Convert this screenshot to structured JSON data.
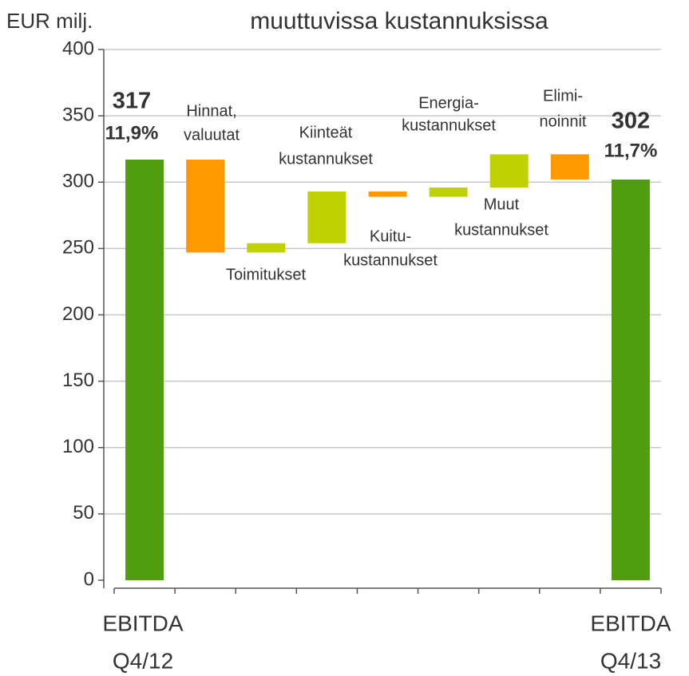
{
  "chart_data": {
    "type": "waterfall",
    "title": "muuttuvissa kustannuksissa",
    "y_label": "EUR milj.",
    "categories": [
      [
        "EBITDA",
        "Q4/12"
      ],
      [
        "Hinnat,",
        "valuutat"
      ],
      [
        "Toimitukset"
      ],
      [
        "Kiinteät",
        "kustannukset"
      ],
      [
        "Kuitu-",
        "kustannukset"
      ],
      [
        "Energia-",
        "kustannukset"
      ],
      [
        "Muut",
        "kustannukset"
      ],
      [
        "Elimi-",
        "noinnit"
      ],
      [
        "EBITDA",
        "Q4/13"
      ]
    ],
    "kinds": [
      "total",
      "delta",
      "delta",
      "delta",
      "delta",
      "delta",
      "delta",
      "delta",
      "total"
    ],
    "values": [
      317,
      -70,
      7,
      39,
      -4,
      7,
      25,
      -19,
      302
    ],
    "margins": [
      "11,9%",
      "11,7%"
    ],
    "colors": {
      "total": "#4f9e0f",
      "increase": "#bfd200",
      "decrease": "#ff9900"
    },
    "ylim": [
      0,
      400
    ],
    "yticks": [
      0,
      50,
      100,
      150,
      200,
      250,
      300,
      350,
      400
    ],
    "grid": true
  }
}
